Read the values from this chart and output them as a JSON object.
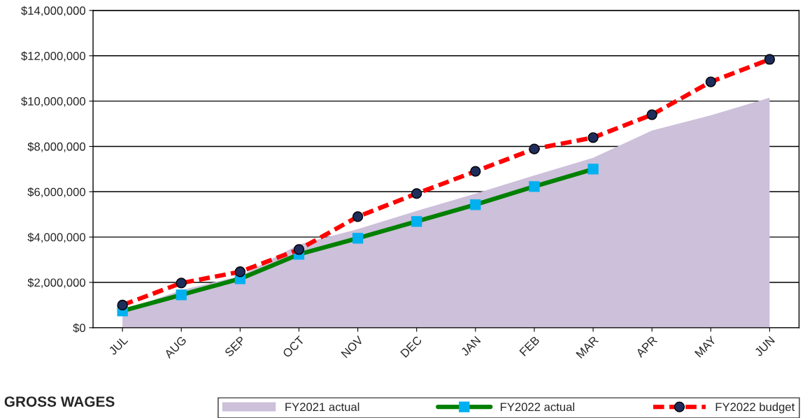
{
  "chart_data": {
    "type": "line",
    "categories": [
      "JUL",
      "AUG",
      "SEP",
      "OCT",
      "NOV",
      "DEC",
      "JAN",
      "FEB",
      "MAR",
      "APR",
      "MAY",
      "JUN"
    ],
    "series": [
      {
        "name": "FY2021 actual",
        "type": "area",
        "color": "#ccc0da",
        "values": [
          750000,
          1660000,
          2280000,
          3670000,
          4350000,
          5150000,
          5920000,
          6720000,
          7500000,
          8700000,
          9370000,
          10150000
        ]
      },
      {
        "name": "FY2022 actual",
        "color": "#008000",
        "marker": "square",
        "line_style": "solid",
        "values": [
          740000,
          1450000,
          2160000,
          3240000,
          3950000,
          4690000,
          5430000,
          6230000,
          7000000,
          null,
          null,
          null
        ]
      },
      {
        "name": "FY2022 budget",
        "color": "#ff0000",
        "marker": "circle",
        "line_style": "dashed",
        "values": [
          1000000,
          1970000,
          2470000,
          3450000,
          4900000,
          5920000,
          6900000,
          7890000,
          8390000,
          9400000,
          10850000,
          11840000
        ]
      }
    ],
    "ylim": [
      0,
      14000000
    ],
    "yticks": [
      {
        "value": 0,
        "label": "$0"
      },
      {
        "value": 2000000,
        "label": "$2,000,000"
      },
      {
        "value": 4000000,
        "label": "$4,000,000"
      },
      {
        "value": 6000000,
        "label": "$6,000,000"
      },
      {
        "value": 8000000,
        "label": "$8,000,000"
      },
      {
        "value": 10000000,
        "label": "$10,000,000"
      },
      {
        "value": 12000000,
        "label": "$12,000,000"
      },
      {
        "value": 14000000,
        "label": "$14,000,000"
      }
    ],
    "grid": "y",
    "legend": "bottom",
    "annotations": [
      "GROSS WAGES"
    ]
  }
}
